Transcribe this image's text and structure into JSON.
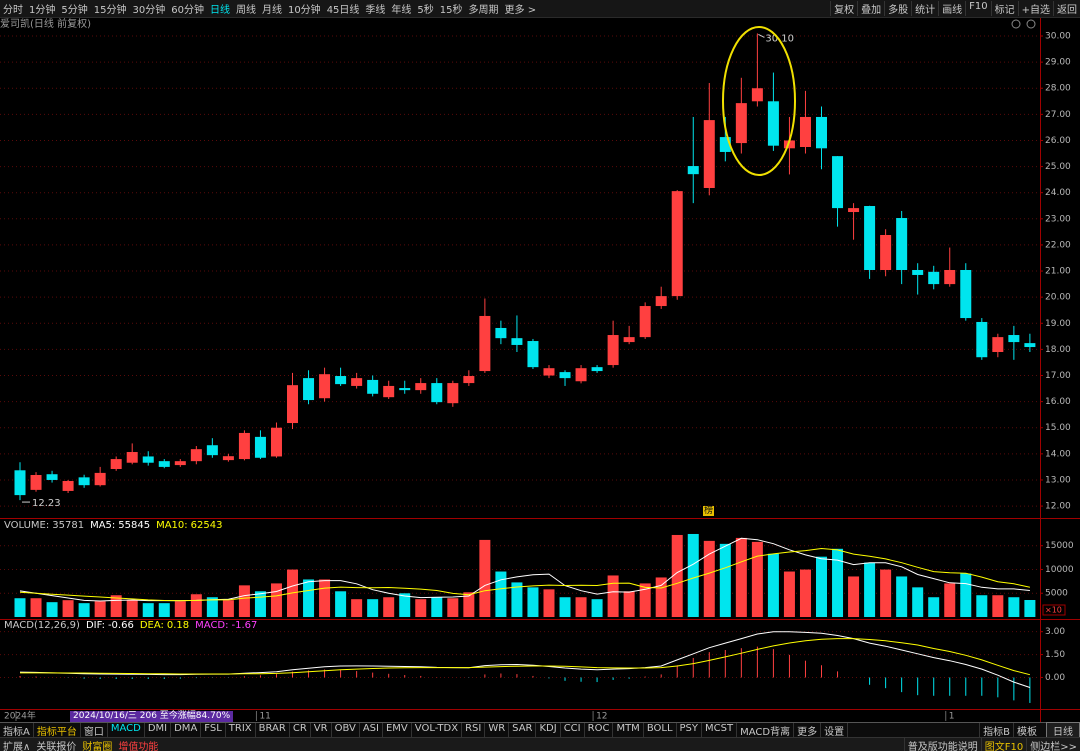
{
  "toolbar": {
    "periods": [
      {
        "label": "分时"
      },
      {
        "label": "1分钟"
      },
      {
        "label": "5分钟"
      },
      {
        "label": "15分钟"
      },
      {
        "label": "30分钟"
      },
      {
        "label": "60分钟"
      },
      {
        "label": "日线",
        "selected": true
      },
      {
        "label": "周线"
      },
      {
        "label": "月线"
      },
      {
        "label": "10分钟"
      },
      {
        "label": "45日线"
      },
      {
        "label": "季线"
      },
      {
        "label": "年线"
      },
      {
        "label": "5秒"
      },
      {
        "label": "15秒"
      },
      {
        "label": "多周期"
      },
      {
        "label": "更多 >"
      }
    ],
    "tools": [
      "复权",
      "叠加",
      "多股",
      "统计",
      "画线",
      "F10",
      "标记",
      "+自选",
      "返回"
    ]
  },
  "title": "爱司凯(日线 前复权)",
  "badge": "榜",
  "status": "2024/10/16/三 206 至今涨幅84.70%",
  "chart_data": [
    {
      "type": "candlestick",
      "categories": [
        "2024年",
        null,
        null,
        null,
        null,
        null,
        null,
        null,
        null,
        null,
        null,
        null,
        null,
        null,
        null,
        "11",
        null,
        null,
        null,
        null,
        null,
        null,
        null,
        null,
        null,
        null,
        null,
        null,
        null,
        null,
        null,
        null,
        null,
        null,
        null,
        null,
        "12",
        null,
        null,
        null,
        null,
        null,
        null,
        null,
        null,
        null,
        null,
        null,
        null,
        null,
        null,
        null,
        null,
        null,
        null,
        null,
        null,
        null,
        "1",
        null,
        null,
        null,
        null,
        null
      ],
      "open": [
        13.37,
        12.62,
        13.22,
        12.58,
        13.1,
        12.8,
        13.42,
        13.66,
        13.9,
        13.72,
        13.57,
        13.72,
        14.33,
        13.76,
        13.8,
        14.65,
        13.9,
        15.18,
        16.9,
        16.13,
        16.98,
        16.6,
        16.83,
        16.17,
        16.52,
        16.44,
        16.71,
        15.94,
        16.71,
        17.17,
        18.82,
        18.43,
        18.32,
        17.0,
        17.13,
        16.78,
        17.32,
        17.4,
        18.28,
        18.47,
        19.66,
        20.04,
        25.02,
        24.18,
        26.13,
        25.9,
        27.5,
        27.5,
        25.7,
        25.75,
        26.9,
        25.4,
        23.26,
        23.49,
        21.04,
        23.03,
        21.04,
        20.97,
        20.5,
        21.04,
        19.05,
        17.9,
        18.55,
        18.24
      ],
      "high": [
        13.68,
        13.3,
        13.35,
        13.0,
        13.2,
        13.5,
        13.9,
        14.4,
        14.1,
        13.8,
        13.8,
        14.3,
        14.6,
        14.0,
        14.9,
        14.9,
        15.2,
        17.1,
        17.2,
        17.3,
        17.3,
        17.1,
        17.0,
        16.8,
        16.8,
        16.9,
        16.9,
        16.8,
        17.2,
        19.95,
        19.1,
        19.3,
        18.4,
        17.4,
        17.2,
        17.4,
        17.4,
        19.1,
        18.9,
        19.8,
        20.4,
        24.1,
        26.9,
        28.2,
        26.9,
        28.4,
        30.1,
        28.6,
        26.9,
        27.9,
        27.3,
        25.4,
        23.6,
        23.5,
        22.6,
        23.3,
        21.3,
        21.2,
        21.9,
        21.3,
        19.2,
        18.6,
        18.9,
        18.6
      ],
      "low": [
        12.23,
        12.55,
        12.9,
        12.5,
        12.7,
        12.75,
        13.35,
        13.6,
        13.55,
        13.45,
        13.5,
        13.6,
        13.85,
        13.7,
        13.75,
        13.8,
        13.85,
        14.95,
        15.9,
        16.0,
        16.6,
        16.5,
        16.2,
        16.1,
        16.3,
        16.3,
        15.9,
        15.8,
        16.6,
        17.1,
        18.2,
        17.9,
        17.25,
        16.9,
        16.6,
        16.7,
        17.1,
        17.3,
        18.2,
        18.4,
        19.55,
        19.9,
        23.6,
        23.9,
        25.2,
        25.5,
        27.3,
        25.6,
        24.7,
        25.5,
        24.9,
        22.7,
        22.2,
        20.7,
        20.8,
        20.5,
        20.1,
        20.3,
        20.4,
        19.1,
        17.6,
        17.7,
        17.6,
        17.9
      ],
      "close": [
        12.42,
        13.19,
        13.0,
        12.96,
        12.8,
        13.27,
        13.8,
        14.07,
        13.66,
        13.5,
        13.72,
        14.18,
        13.95,
        13.91,
        14.8,
        13.85,
        15.0,
        16.63,
        16.06,
        17.05,
        16.67,
        16.9,
        16.3,
        16.6,
        16.44,
        16.71,
        15.98,
        16.71,
        16.98,
        19.28,
        18.43,
        18.17,
        17.32,
        17.28,
        16.9,
        17.28,
        17.17,
        18.55,
        18.47,
        19.66,
        20.04,
        24.06,
        24.71,
        26.78,
        25.56,
        27.43,
        28.0,
        25.8,
        26.0,
        26.9,
        25.7,
        23.41,
        23.41,
        21.04,
        22.38,
        21.04,
        20.85,
        20.5,
        21.04,
        19.2,
        17.7,
        18.47,
        18.28,
        18.09
      ],
      "max_label": "30.10",
      "min_label": "12.23",
      "up_color": "#ff4040",
      "down_color": "#00e5ee",
      "ylim": [
        11.62,
        30.23
      ],
      "yticks": [
        {
          "value": 12,
          "label": "12.00"
        },
        {
          "value": 13,
          "label": "13.00"
        },
        {
          "value": 14,
          "label": "14.00"
        },
        {
          "value": 15,
          "label": "15.00"
        },
        {
          "value": 16,
          "label": "16.00"
        },
        {
          "value": 17,
          "label": "17.00"
        },
        {
          "value": 18,
          "label": "18.00"
        },
        {
          "value": 19,
          "label": "19.00"
        },
        {
          "value": 20,
          "label": "20.00"
        },
        {
          "value": 21,
          "label": "21.00"
        },
        {
          "value": 22,
          "label": "22.00"
        },
        {
          "value": 23,
          "label": "23.00"
        },
        {
          "value": 24,
          "label": "24.00"
        },
        {
          "value": 25,
          "label": "25.00"
        },
        {
          "value": 26,
          "label": "26.00"
        },
        {
          "value": 27,
          "label": "27.00"
        },
        {
          "value": 28,
          "label": "28.00"
        },
        {
          "value": 29,
          "label": "29.00"
        },
        {
          "value": 30,
          "label": "30.00"
        }
      ],
      "grid": true
    },
    {
      "type": "bar",
      "series": [
        {
          "name": "VOLUME:",
          "readout": "35781",
          "style": "bar",
          "values": [
            3950,
            3950,
            3120,
            3540,
            2910,
            3330,
            4580,
            3540,
            2910,
            2910,
            3330,
            4790,
            4160,
            3540,
            6660,
            5410,
            7070,
            9980,
            7900,
            7900,
            5410,
            3750,
            3750,
            4160,
            4990,
            3750,
            4160,
            3950,
            5200,
            16220,
            9570,
            7280,
            6240,
            5820,
            4160,
            4160,
            3750,
            8740,
            5410,
            7070,
            8320,
            17260,
            17470,
            16020,
            15390,
            16640,
            15810,
            13310,
            9570,
            9980,
            12690,
            14350,
            8530,
            11440,
            9980,
            8530,
            6240,
            4160,
            7070,
            9150,
            4580,
            4580,
            4160,
            3578.1
          ]
        },
        {
          "name": "MA5:",
          "readout": "55845",
          "style": "line",
          "color": "#ffffff",
          "values": [
            5500,
            5000,
            4500,
            4000,
            3494,
            3370,
            3496,
            3580,
            3454,
            3454,
            3454,
            3496,
            3620,
            3746,
            4496,
            4912,
            5368,
            6532,
            7404,
            7652,
            7652,
            6988,
            5742,
            4994,
            4412,
            4080,
            4162,
            4202,
            4410,
            6656,
            7820,
            8444,
            8902,
            9026,
            6614,
            5532,
            4826,
            5326,
            5244,
            5826,
            6658,
            9360,
            11106,
            13228,
            14892,
            16556,
            16266,
            15434,
            14144,
            13062,
            12272,
            11980,
            11024,
            11398,
            11398,
            10566,
            8944,
            8070,
            7196,
            7030,
            6240,
            5908,
            5908,
            5584.5
          ]
        },
        {
          "name": "MA10:",
          "readout": "62543",
          "style": "line",
          "color": "#ffff00",
          "values": [
            5200,
            5000,
            4800,
            4600,
            4400,
            4200,
            4000,
            3800,
            3600,
            3474,
            3412,
            3496,
            3600,
            3600,
            3975,
            4183,
            4432,
            5076,
            5575,
            6074,
            6282,
            6178,
            6137,
            6199,
            6032,
            5866,
            5575,
            4972,
            4702,
            5534,
            5950,
            6303,
            6552,
            6718,
            6635,
            6676,
            6635,
            7114,
            7135,
            6220,
            6095,
            7093,
            8216,
            9236,
            10359,
            11607,
            12813,
            13270,
            13686,
            13977,
            14414,
            14123,
            13229,
            12771,
            12230,
            11419,
            10462,
            9547,
            9297,
            9214,
            8403,
            7426,
            6989,
            6254.3
          ]
        }
      ],
      "unit_label": "×10",
      "ylim": [
        0,
        20200
      ],
      "yticks": [
        5000,
        10000,
        15000
      ],
      "grid": true
    },
    {
      "type": "macd",
      "title": "MACD(12,26,9)",
      "series": [
        {
          "name": "DIF:",
          "readout": "-0.66",
          "style": "line",
          "color": "#ffffff",
          "values": [
            0.35,
            0.33,
            0.3,
            0.28,
            0.25,
            0.23,
            0.22,
            0.21,
            0.2,
            0.19,
            0.19,
            0.21,
            0.22,
            0.22,
            0.28,
            0.32,
            0.38,
            0.5,
            0.6,
            0.7,
            0.75,
            0.76,
            0.75,
            0.74,
            0.72,
            0.7,
            0.66,
            0.65,
            0.64,
            0.78,
            0.84,
            0.85,
            0.8,
            0.72,
            0.62,
            0.55,
            0.5,
            0.55,
            0.58,
            0.65,
            0.75,
            1.15,
            1.55,
            1.95,
            2.25,
            2.55,
            2.85,
            3.0,
            3.0,
            2.95,
            2.9,
            2.75,
            2.55,
            2.25,
            2.05,
            1.8,
            1.55,
            1.3,
            1.1,
            0.85,
            0.55,
            0.15,
            -0.3,
            -0.66
          ]
        },
        {
          "name": "DEA:",
          "readout": "0.18",
          "style": "line",
          "color": "#ffff00",
          "values": [
            0.3,
            0.3,
            0.3,
            0.29,
            0.29,
            0.28,
            0.27,
            0.26,
            0.25,
            0.24,
            0.23,
            0.23,
            0.23,
            0.23,
            0.24,
            0.25,
            0.27,
            0.31,
            0.37,
            0.44,
            0.5,
            0.55,
            0.59,
            0.62,
            0.64,
            0.65,
            0.65,
            0.65,
            0.65,
            0.68,
            0.71,
            0.74,
            0.75,
            0.75,
            0.73,
            0.69,
            0.65,
            0.63,
            0.62,
            0.62,
            0.65,
            0.75,
            0.91,
            1.12,
            1.35,
            1.59,
            1.84,
            2.07,
            2.26,
            2.4,
            2.5,
            2.55,
            2.55,
            2.49,
            2.4,
            2.28,
            2.13,
            1.9,
            1.7,
            1.45,
            1.15,
            0.8,
            0.45,
            0.18
          ]
        },
        {
          "name": "MACD:",
          "readout": "-1.67",
          "style": "hist",
          "color": "#ff40ff",
          "values": [
            0.1,
            0.06,
            0,
            -0.02,
            -0.08,
            -0.1,
            -0.1,
            -0.1,
            -0.1,
            -0.1,
            -0.08,
            -0.04,
            -0.02,
            -0.02,
            0.08,
            0.14,
            0.22,
            0.38,
            0.46,
            0.52,
            0.5,
            0.42,
            0.32,
            0.24,
            0.16,
            0.1,
            0.02,
            0,
            -0.02,
            0.2,
            0.26,
            0.22,
            0.1,
            -0.06,
            -0.22,
            -0.28,
            -0.3,
            -0.16,
            -0.08,
            0.06,
            0.2,
            0.8,
            1.28,
            1.66,
            1.8,
            1.92,
            2.02,
            1.86,
            1.48,
            1.1,
            0.8,
            0.4,
            0,
            -0.48,
            -0.7,
            -0.96,
            -1.16,
            -1.2,
            -1.2,
            -1.2,
            -1.2,
            -1.3,
            -1.5,
            -1.67
          ]
        }
      ],
      "ylim": [
        -2.0,
        3.7
      ],
      "yticks": [
        {
          "value": 3,
          "label": "3.00"
        },
        {
          "value": 1.5,
          "label": "1.50"
        },
        {
          "value": 0,
          "label": "0.00"
        }
      ],
      "grid": true
    }
  ],
  "indicator_tabs": {
    "left": [
      {
        "label": "指标A"
      },
      {
        "label": "指标平台",
        "color": "#e8c000"
      },
      {
        "label": "窗口"
      },
      {
        "label": "MACD",
        "selected": true
      },
      {
        "label": "DMI"
      },
      {
        "label": "DMA"
      },
      {
        "label": "FSL"
      },
      {
        "label": "TRIX"
      },
      {
        "label": "BRAR"
      },
      {
        "label": "CR"
      },
      {
        "label": "VR"
      },
      {
        "label": "OBV"
      },
      {
        "label": "ASI"
      },
      {
        "label": "EMV"
      },
      {
        "label": "VOL-TDX"
      },
      {
        "label": "RSI"
      },
      {
        "label": "WR"
      },
      {
        "label": "SAR"
      },
      {
        "label": "KDJ"
      },
      {
        "label": "CCI"
      },
      {
        "label": "ROC"
      },
      {
        "label": "MTM"
      },
      {
        "label": "BOLL"
      },
      {
        "label": "PSY"
      },
      {
        "label": "MCST"
      },
      {
        "label": "MACD背离"
      },
      {
        "label": "更多"
      },
      {
        "label": "设置"
      }
    ],
    "right": [
      {
        "label": "指标B"
      },
      {
        "label": "模板"
      }
    ],
    "period": "日线"
  },
  "footer": {
    "left": [
      {
        "label": "扩展∧"
      },
      {
        "label": "关联报价"
      },
      {
        "label": "财富圈",
        "color": "#e8c000"
      },
      {
        "label": "增值功能",
        "color": "#ff4040"
      }
    ],
    "right": [
      {
        "label": "普及版功能说明"
      },
      {
        "label": "图文F10",
        "color": "#e8c000"
      },
      {
        "label": "侧边栏>>"
      }
    ]
  }
}
